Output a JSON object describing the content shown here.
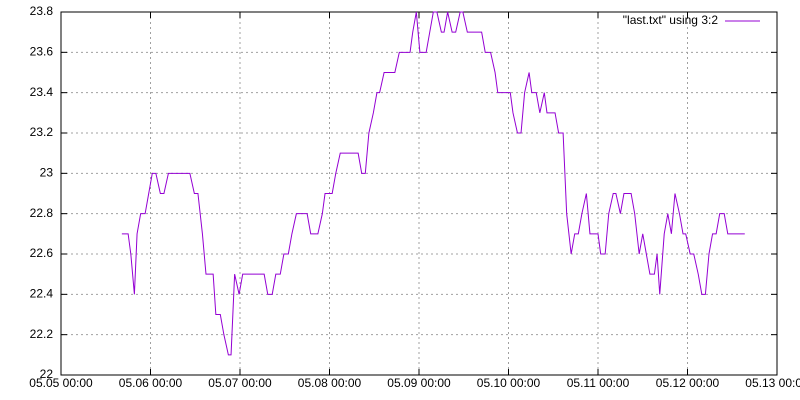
{
  "chart_data": {
    "type": "line",
    "x": [
      5.68,
      5.75,
      5.78,
      5.82,
      5.85,
      5.89,
      5.94,
      5.98,
      6.02,
      6.06,
      6.11,
      6.15,
      6.2,
      6.24,
      6.33,
      6.44,
      6.49,
      6.53,
      6.58,
      6.62,
      6.7,
      6.73,
      6.78,
      6.82,
      6.87,
      6.9,
      6.94,
      6.99,
      7.03,
      7.11,
      7.19,
      7.27,
      7.31,
      7.36,
      7.4,
      7.45,
      7.49,
      7.54,
      7.58,
      7.63,
      7.67,
      7.75,
      7.79,
      7.87,
      7.92,
      7.95,
      8.03,
      8.07,
      8.12,
      8.23,
      8.32,
      8.36,
      8.4,
      8.44,
      8.49,
      8.53,
      8.56,
      8.61,
      8.73,
      8.78,
      8.9,
      8.93,
      8.97,
      9.01,
      9.08,
      9.12,
      9.16,
      9.2,
      9.25,
      9.28,
      9.32,
      9.37,
      9.41,
      9.46,
      9.49,
      9.54,
      9.63,
      9.7,
      9.74,
      9.8,
      9.85,
      9.88,
      10.02,
      10.05,
      10.1,
      10.14,
      10.18,
      10.23,
      10.26,
      10.31,
      10.35,
      10.4,
      10.43,
      10.47,
      10.52,
      10.56,
      10.61,
      10.65,
      10.7,
      10.74,
      10.78,
      10.82,
      10.87,
      10.91,
      10.96,
      11.0,
      11.03,
      11.08,
      11.12,
      11.17,
      11.2,
      11.25,
      11.29,
      11.37,
      11.41,
      11.46,
      11.5,
      11.54,
      11.58,
      11.63,
      11.66,
      11.69,
      11.74,
      11.78,
      11.82,
      11.86,
      11.91,
      11.95,
      11.98,
      12.03,
      12.07,
      12.12,
      12.16,
      12.2,
      12.24,
      12.28,
      12.32,
      12.36,
      12.41,
      12.45,
      12.53,
      12.64
    ],
    "series": [
      {
        "name": "\"last.txt\" using 3:2",
        "color": "#9400d3",
        "values": [
          22.7,
          22.7,
          22.6,
          22.4,
          22.7,
          22.8,
          22.8,
          22.9,
          23.0,
          23.0,
          22.9,
          22.9,
          23.0,
          23.0,
          23.0,
          23.0,
          22.9,
          22.9,
          22.7,
          22.5,
          22.5,
          22.3,
          22.3,
          22.2,
          22.1,
          22.1,
          22.5,
          22.4,
          22.5,
          22.5,
          22.5,
          22.5,
          22.4,
          22.4,
          22.5,
          22.5,
          22.6,
          22.6,
          22.7,
          22.8,
          22.8,
          22.8,
          22.7,
          22.7,
          22.8,
          22.9,
          22.9,
          23.0,
          23.1,
          23.1,
          23.1,
          23.0,
          23.0,
          23.2,
          23.3,
          23.4,
          23.4,
          23.5,
          23.5,
          23.6,
          23.6,
          23.7,
          23.8,
          23.6,
          23.6,
          23.7,
          23.8,
          23.8,
          23.7,
          23.7,
          23.8,
          23.7,
          23.7,
          23.8,
          23.8,
          23.7,
          23.7,
          23.7,
          23.6,
          23.6,
          23.5,
          23.4,
          23.4,
          23.3,
          23.2,
          23.2,
          23.4,
          23.5,
          23.4,
          23.4,
          23.3,
          23.4,
          23.3,
          23.3,
          23.3,
          23.2,
          23.2,
          22.8,
          22.6,
          22.7,
          22.7,
          22.8,
          22.9,
          22.7,
          22.7,
          22.7,
          22.6,
          22.6,
          22.8,
          22.9,
          22.9,
          22.8,
          22.9,
          22.9,
          22.8,
          22.6,
          22.7,
          22.6,
          22.5,
          22.5,
          22.6,
          22.4,
          22.7,
          22.8,
          22.7,
          22.9,
          22.8,
          22.7,
          22.7,
          22.6,
          22.6,
          22.5,
          22.4,
          22.4,
          22.6,
          22.7,
          22.7,
          22.8,
          22.8,
          22.7,
          22.7,
          22.7
        ]
      }
    ],
    "xlim": [
      5,
      13
    ],
    "xticks": [
      {
        "value": 5,
        "label": "05.05 00:00"
      },
      {
        "value": 6,
        "label": "05.06 00:00"
      },
      {
        "value": 7,
        "label": "05.07 00:00"
      },
      {
        "value": 8,
        "label": "05.08 00:00"
      },
      {
        "value": 9,
        "label": "05.09 00:00"
      },
      {
        "value": 10,
        "label": "05.10 00:00"
      },
      {
        "value": 11,
        "label": "05.11 00:00"
      },
      {
        "value": 12,
        "label": "05.12 00:00"
      },
      {
        "value": 13,
        "label": "05.13 00:00"
      }
    ],
    "ylim": [
      22,
      23.8
    ],
    "yticks": [
      22,
      22.2,
      22.4,
      22.6,
      22.8,
      23,
      23.2,
      23.4,
      23.6,
      23.8
    ],
    "grid": true,
    "legend": "top-right"
  }
}
